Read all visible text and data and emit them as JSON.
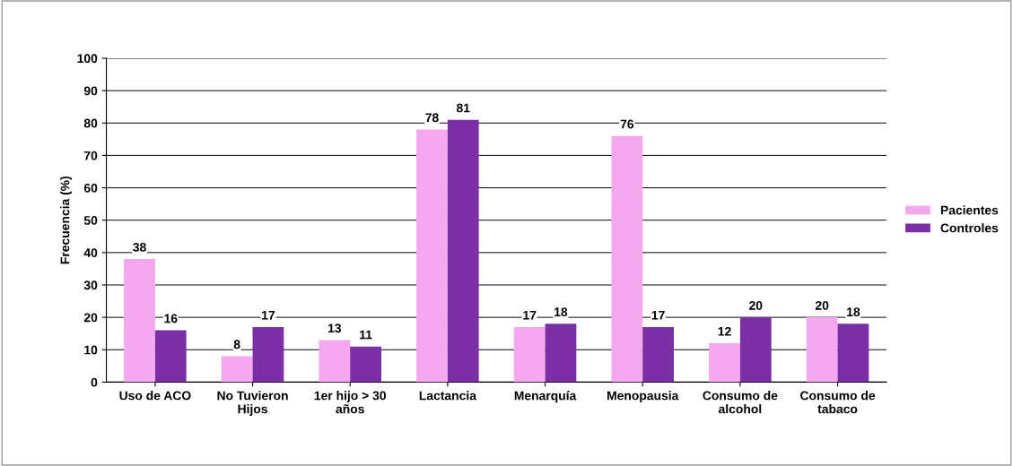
{
  "chart_data": {
    "type": "bar",
    "ylabel": "Frecuencia (%)",
    "categories": [
      "Uso de ACO",
      "No Tuvieron\nHijos",
      "1er hijo > 30\naños",
      "Lactancia",
      "Menarquía",
      "Menopausia",
      "Consumo de\nalcohol",
      "Consumo de\ntabaco"
    ],
    "series": [
      {
        "name": "Pacientes",
        "color": "#f5a8f0",
        "values": [
          38,
          8,
          13,
          78,
          17,
          76,
          12,
          20
        ]
      },
      {
        "name": "Controles",
        "color": "#7a2fa5",
        "values": [
          16,
          17,
          11,
          81,
          18,
          17,
          20,
          18
        ]
      }
    ],
    "ylim": [
      0,
      100
    ],
    "yticks": [
      0,
      10,
      20,
      30,
      40,
      50,
      60,
      70,
      80,
      90,
      100
    ],
    "grid": "y",
    "legend": "right",
    "data_labels": true
  }
}
